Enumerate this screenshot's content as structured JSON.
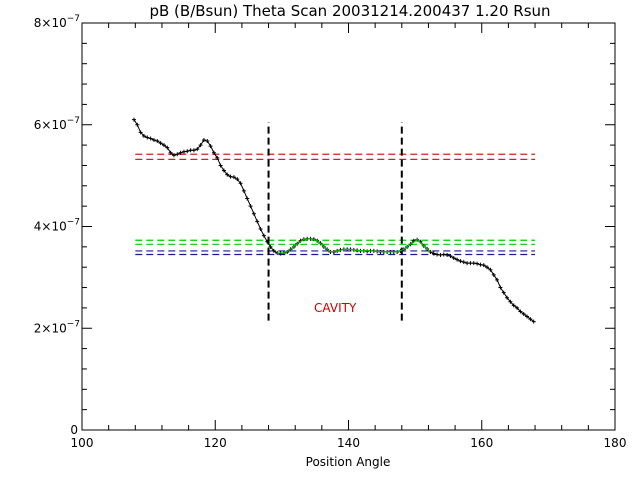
{
  "chart_data": {
    "type": "line",
    "title": "pB (B/Bsun) Theta Scan 20031214.200437 1.20 Rsun",
    "xlabel": "Position Angle",
    "ylabel": "",
    "xlim": [
      100,
      180
    ],
    "ylim": [
      0,
      8e-07
    ],
    "x_ticks": [
      {
        "value": 100,
        "label": "100"
      },
      {
        "value": 120,
        "label": "120"
      },
      {
        "value": 140,
        "label": "140"
      },
      {
        "value": 160,
        "label": "160"
      },
      {
        "value": 180,
        "label": "180"
      }
    ],
    "y_ticks": [
      {
        "value": 0,
        "label": "0"
      },
      {
        "value": 2e-07,
        "mantissa": "2×10",
        "exp": "−7"
      },
      {
        "value": 4e-07,
        "mantissa": "4×10",
        "exp": "−7"
      },
      {
        "value": 6e-07,
        "mantissa": "6×10",
        "exp": "−7"
      },
      {
        "value": 8e-07,
        "mantissa": "8×10",
        "exp": "−7"
      }
    ],
    "series": [
      {
        "color": "#000000",
        "marker": "plus",
        "points": [
          [
            107.8,
            6.1e-07
          ],
          [
            108.3,
            6e-07
          ],
          [
            108.8,
            5.85e-07
          ],
          [
            109.3,
            5.78e-07
          ],
          [
            109.8,
            5.75e-07
          ],
          [
            110.3,
            5.73e-07
          ],
          [
            110.8,
            5.7e-07
          ],
          [
            111.3,
            5.68e-07
          ],
          [
            111.8,
            5.64e-07
          ],
          [
            112.3,
            5.6e-07
          ],
          [
            112.8,
            5.55e-07
          ],
          [
            113.3,
            5.45e-07
          ],
          [
            113.8,
            5.4e-07
          ],
          [
            114.3,
            5.42e-07
          ],
          [
            114.8,
            5.45e-07
          ],
          [
            115.3,
            5.47e-07
          ],
          [
            115.8,
            5.48e-07
          ],
          [
            116.3,
            5.5e-07
          ],
          [
            116.8,
            5.5e-07
          ],
          [
            117.3,
            5.52e-07
          ],
          [
            117.8,
            5.6e-07
          ],
          [
            118.3,
            5.7e-07
          ],
          [
            118.8,
            5.68e-07
          ],
          [
            119.3,
            5.58e-07
          ],
          [
            119.8,
            5.45e-07
          ],
          [
            120.3,
            5.35e-07
          ],
          [
            120.8,
            5.2e-07
          ],
          [
            121.3,
            5.1e-07
          ],
          [
            121.8,
            5.02e-07
          ],
          [
            122.3,
            4.98e-07
          ],
          [
            122.8,
            4.97e-07
          ],
          [
            123.3,
            4.93e-07
          ],
          [
            123.8,
            4.85e-07
          ],
          [
            124.3,
            4.7e-07
          ],
          [
            124.8,
            4.55e-07
          ],
          [
            125.3,
            4.4e-07
          ],
          [
            125.8,
            4.25e-07
          ],
          [
            126.3,
            4.1e-07
          ],
          [
            126.8,
            3.95e-07
          ],
          [
            127.3,
            3.82e-07
          ],
          [
            127.8,
            3.7e-07
          ],
          [
            128.3,
            3.6e-07
          ],
          [
            128.8,
            3.52e-07
          ],
          [
            129.3,
            3.48e-07
          ],
          [
            129.8,
            3.47e-07
          ],
          [
            130.3,
            3.48e-07
          ],
          [
            130.8,
            3.5e-07
          ],
          [
            131.3,
            3.55e-07
          ],
          [
            131.8,
            3.6e-07
          ],
          [
            132.3,
            3.66e-07
          ],
          [
            132.8,
            3.72e-07
          ],
          [
            133.3,
            3.75e-07
          ],
          [
            133.8,
            3.76e-07
          ],
          [
            134.3,
            3.76e-07
          ],
          [
            134.8,
            3.75e-07
          ],
          [
            135.3,
            3.72e-07
          ],
          [
            135.8,
            3.67e-07
          ],
          [
            136.3,
            3.6e-07
          ],
          [
            136.8,
            3.55e-07
          ],
          [
            137.3,
            3.5e-07
          ],
          [
            137.8,
            3.5e-07
          ],
          [
            138.3,
            3.52e-07
          ],
          [
            138.8,
            3.54e-07
          ],
          [
            139.3,
            3.55e-07
          ],
          [
            139.8,
            3.55e-07
          ],
          [
            140.3,
            3.55e-07
          ],
          [
            140.8,
            3.54e-07
          ],
          [
            141.3,
            3.53e-07
          ],
          [
            141.8,
            3.52e-07
          ],
          [
            142.3,
            3.52e-07
          ],
          [
            142.8,
            3.51e-07
          ],
          [
            143.3,
            3.52e-07
          ],
          [
            143.8,
            3.52e-07
          ],
          [
            144.3,
            3.51e-07
          ],
          [
            144.8,
            3.5e-07
          ],
          [
            145.3,
            3.5e-07
          ],
          [
            145.8,
            3.5e-07
          ],
          [
            146.3,
            3.5e-07
          ],
          [
            146.8,
            3.5e-07
          ],
          [
            147.3,
            3.5e-07
          ],
          [
            147.8,
            3.52e-07
          ],
          [
            148.3,
            3.55e-07
          ],
          [
            148.8,
            3.6e-07
          ],
          [
            149.3,
            3.65e-07
          ],
          [
            149.8,
            3.72e-07
          ],
          [
            150.3,
            3.74e-07
          ],
          [
            150.8,
            3.7e-07
          ],
          [
            151.3,
            3.62e-07
          ],
          [
            151.8,
            3.56e-07
          ],
          [
            152.3,
            3.5e-07
          ],
          [
            152.8,
            3.47e-07
          ],
          [
            153.3,
            3.45e-07
          ],
          [
            153.8,
            3.44e-07
          ],
          [
            154.3,
            3.45e-07
          ],
          [
            154.8,
            3.44e-07
          ],
          [
            155.3,
            3.42e-07
          ],
          [
            155.8,
            3.38e-07
          ],
          [
            156.3,
            3.35e-07
          ],
          [
            156.8,
            3.32e-07
          ],
          [
            157.3,
            3.3e-07
          ],
          [
            157.8,
            3.28e-07
          ],
          [
            158.3,
            3.28e-07
          ],
          [
            158.8,
            3.28e-07
          ],
          [
            159.3,
            3.27e-07
          ],
          [
            159.8,
            3.25e-07
          ],
          [
            160.3,
            3.24e-07
          ],
          [
            160.8,
            3.2e-07
          ],
          [
            161.3,
            3.15e-07
          ],
          [
            161.8,
            3.05e-07
          ],
          [
            162.3,
            2.95e-07
          ],
          [
            162.8,
            2.8e-07
          ],
          [
            163.3,
            2.7e-07
          ],
          [
            163.8,
            2.6e-07
          ],
          [
            164.3,
            2.52e-07
          ],
          [
            164.8,
            2.45e-07
          ],
          [
            165.3,
            2.4e-07
          ],
          [
            165.8,
            2.33e-07
          ],
          [
            166.3,
            2.28e-07
          ],
          [
            166.8,
            2.23e-07
          ],
          [
            167.3,
            2.18e-07
          ],
          [
            167.8,
            2.13e-07
          ]
        ]
      }
    ],
    "green_segment": {
      "color": "#00bb00",
      "points": [
        [
          129.3,
          3.48e-07
        ],
        [
          130.3,
          3.48e-07
        ],
        [
          131.3,
          3.55e-07
        ],
        [
          132.3,
          3.66e-07
        ],
        [
          133.3,
          3.75e-07
        ],
        [
          134.3,
          3.76e-07
        ],
        [
          135.3,
          3.72e-07
        ],
        [
          136.3,
          3.6e-07
        ],
        [
          137.3,
          3.5e-07
        ],
        [
          138.3,
          3.52e-07
        ],
        [
          139.3,
          3.55e-07
        ],
        [
          140.3,
          3.55e-07
        ],
        [
          141.3,
          3.53e-07
        ],
        [
          142.3,
          3.52e-07
        ],
        [
          143.3,
          3.52e-07
        ],
        [
          144.3,
          3.51e-07
        ],
        [
          145.3,
          3.5e-07
        ],
        [
          146.3,
          3.5e-07
        ],
        [
          147.3,
          3.5e-07
        ],
        [
          148.3,
          3.55e-07
        ],
        [
          149.3,
          3.65e-07
        ],
        [
          150.3,
          3.74e-07
        ],
        [
          151.3,
          3.62e-07
        ],
        [
          152.3,
          3.5e-07
        ]
      ]
    },
    "horizontal_lines": [
      {
        "name_key": "red1",
        "y": 5.42e-07,
        "x": [
          108,
          168
        ],
        "color": "#cc2222"
      },
      {
        "name_key": "red2",
        "y": 5.32e-07,
        "x": [
          108,
          168
        ],
        "color": "#cc2222"
      },
      {
        "name_key": "green1",
        "y": 3.73e-07,
        "x": [
          108,
          168
        ],
        "color": "#00cc00"
      },
      {
        "name_key": "green2",
        "y": 3.65e-07,
        "x": [
          108,
          168
        ],
        "color": "#00cc00"
      },
      {
        "name_key": "blue1",
        "y": 3.52e-07,
        "x": [
          108,
          168
        ],
        "color": "#1a1a99"
      },
      {
        "name_key": "blue2",
        "y": 3.45e-07,
        "x": [
          108,
          168
        ],
        "color": "#1a1a99"
      }
    ],
    "vertical_lines": [
      {
        "name_key": "left",
        "x": 128.0,
        "y": [
          2.15e-07,
          6.05e-07
        ],
        "color": "#000000"
      },
      {
        "name_key": "right",
        "x": 148.0,
        "y": [
          2.15e-07,
          6.05e-07
        ],
        "color": "#000000"
      }
    ],
    "annotations": [
      {
        "text": "CAVITY",
        "x": 138.0,
        "y": 2.4e-07,
        "color": "#cc0000"
      }
    ],
    "grid": false,
    "legend": "none"
  }
}
